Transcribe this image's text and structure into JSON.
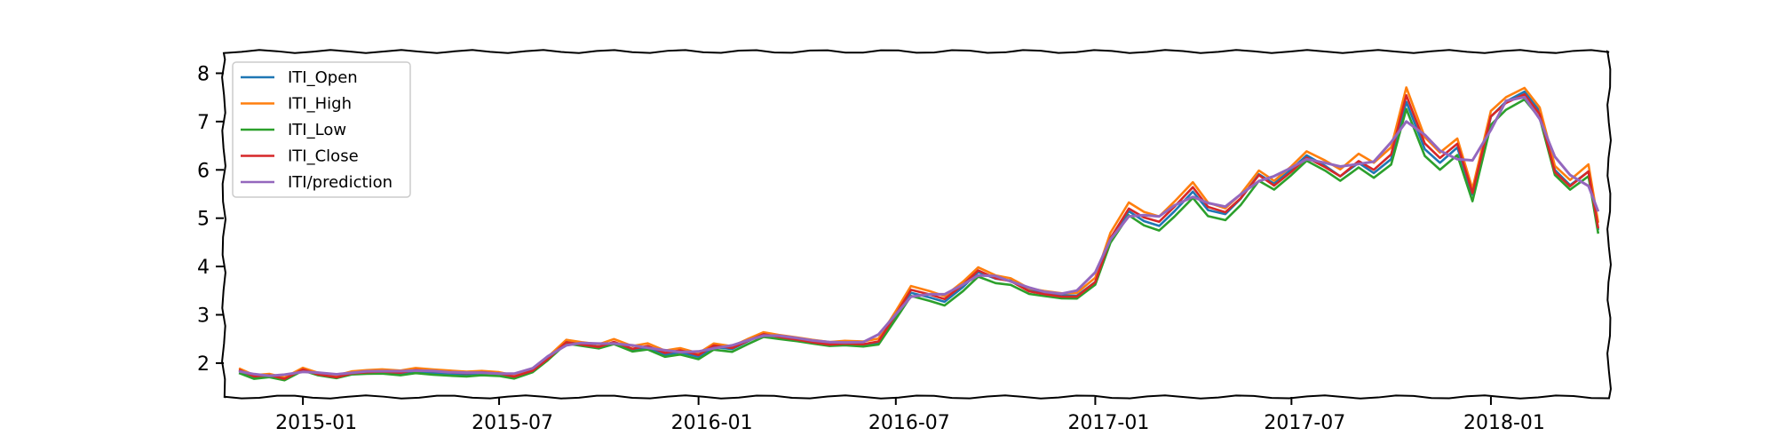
{
  "chart_data": {
    "type": "line",
    "title": "",
    "xlabel": "",
    "ylabel": "",
    "x_range": [
      "2014-10-20",
      "2018-04-20"
    ],
    "ylim": [
      1.3,
      8.45
    ],
    "x_ticks": [
      {
        "date": "2015-01-01",
        "label": "2015-01"
      },
      {
        "date": "2015-07-01",
        "label": "2015-07"
      },
      {
        "date": "2016-01-01",
        "label": "2016-01"
      },
      {
        "date": "2016-07-01",
        "label": "2016-07"
      },
      {
        "date": "2017-01-01",
        "label": "2017-01"
      },
      {
        "date": "2017-07-01",
        "label": "2017-07"
      },
      {
        "date": "2018-01-01",
        "label": "2018-01"
      }
    ],
    "y_ticks": [
      2,
      3,
      4,
      5,
      6,
      7,
      8
    ],
    "grid": false,
    "legend": {
      "position": "top-left",
      "entries": [
        {
          "name": "ITI_Open",
          "color": "#1f77b4"
        },
        {
          "name": "ITI_High",
          "color": "#ff7f0e"
        },
        {
          "name": "ITI_Low",
          "color": "#2ca02c"
        },
        {
          "name": "ITI_Close",
          "color": "#d62728"
        },
        {
          "name": "ITI/prediction",
          "color": "#9467bd"
        }
      ]
    },
    "series": [
      {
        "name": "ITI_Open",
        "color": "#1f77b4",
        "spread": -0.02
      },
      {
        "name": "ITI_High",
        "color": "#ff7f0e",
        "spread": 0.08
      },
      {
        "name": "ITI_Low",
        "color": "#2ca02c",
        "spread": -0.1
      },
      {
        "name": "ITI_Close",
        "color": "#d62728",
        "spread": 0.0
      },
      {
        "name": "ITI/prediction",
        "color": "#9467bd",
        "spread": 0.03,
        "smooth": true
      }
    ],
    "x": [
      "2014-11-03",
      "2014-11-17",
      "2014-12-01",
      "2014-12-15",
      "2015-01-01",
      "2015-01-15",
      "2015-02-01",
      "2015-02-15",
      "2015-03-01",
      "2015-03-15",
      "2015-04-01",
      "2015-04-15",
      "2015-05-01",
      "2015-05-15",
      "2015-06-01",
      "2015-06-15",
      "2015-07-01",
      "2015-07-15",
      "2015-08-01",
      "2015-08-15",
      "2015-09-01",
      "2015-09-15",
      "2015-10-01",
      "2015-10-15",
      "2015-11-01",
      "2015-11-15",
      "2015-12-01",
      "2015-12-15",
      "2016-01-01",
      "2016-01-15",
      "2016-02-01",
      "2016-02-15",
      "2016-03-01",
      "2016-03-15",
      "2016-04-01",
      "2016-04-15",
      "2016-05-01",
      "2016-05-15",
      "2016-06-01",
      "2016-06-15",
      "2016-07-01",
      "2016-07-15",
      "2016-08-01",
      "2016-08-15",
      "2016-09-01",
      "2016-09-15",
      "2016-10-01",
      "2016-10-15",
      "2016-11-01",
      "2016-11-15",
      "2016-12-01",
      "2016-12-15",
      "2017-01-01",
      "2017-01-15",
      "2017-02-01",
      "2017-02-15",
      "2017-03-01",
      "2017-03-15",
      "2017-04-01",
      "2017-04-15",
      "2017-05-01",
      "2017-05-15",
      "2017-06-01",
      "2017-06-15",
      "2017-07-01",
      "2017-07-15",
      "2017-08-01",
      "2017-08-15",
      "2017-09-01",
      "2017-09-15",
      "2017-10-01",
      "2017-10-15",
      "2017-11-01",
      "2017-11-15",
      "2017-12-01",
      "2017-12-15",
      "2018-01-01",
      "2018-01-15",
      "2018-02-01",
      "2018-02-15",
      "2018-03-01",
      "2018-03-15",
      "2018-04-01",
      "2018-04-10"
    ],
    "close": [
      1.85,
      1.72,
      1.75,
      1.68,
      1.88,
      1.78,
      1.72,
      1.8,
      1.82,
      1.83,
      1.8,
      1.85,
      1.82,
      1.8,
      1.78,
      1.8,
      1.78,
      1.72,
      1.85,
      2.1,
      2.45,
      2.4,
      2.35,
      2.45,
      2.3,
      2.35,
      2.2,
      2.25,
      2.15,
      2.35,
      2.3,
      2.45,
      2.6,
      2.55,
      2.5,
      2.45,
      2.4,
      2.42,
      2.4,
      2.45,
      3.0,
      3.5,
      3.4,
      3.3,
      3.6,
      3.9,
      3.75,
      3.7,
      3.5,
      3.45,
      3.4,
      3.4,
      3.7,
      4.6,
      5.2,
      5.0,
      4.9,
      5.2,
      5.6,
      5.2,
      5.1,
      5.4,
      5.9,
      5.7,
      6.0,
      6.3,
      6.1,
      5.9,
      6.2,
      6.0,
      6.3,
      7.5,
      6.5,
      6.2,
      6.5,
      5.5,
      7.1,
      7.4,
      7.6,
      7.2,
      6.0,
      5.7,
      6.0,
      4.8
    ]
  }
}
